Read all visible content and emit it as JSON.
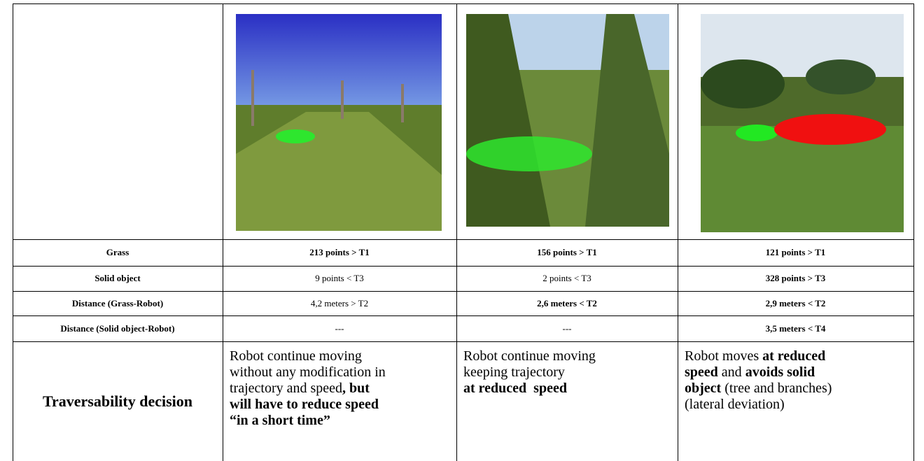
{
  "table": {
    "rows": [
      {
        "label": "Grass",
        "cells": [
          {
            "text": "213 points > T1",
            "bold": true
          },
          {
            "text": "156 points > T1",
            "bold": true
          },
          {
            "text": "121 points > T1",
            "bold": true
          }
        ]
      },
      {
        "label": "Solid object",
        "cells": [
          {
            "text": "9 points < T3",
            "bold": false
          },
          {
            "text": "2 points < T3",
            "bold": false
          },
          {
            "text": "328 points > T3",
            "bold": true
          }
        ]
      },
      {
        "label": "Distance (Grass-Robot)",
        "cells": [
          {
            "text": "4,2 meters > T2",
            "bold": false
          },
          {
            "text": "2,6 meters < T2",
            "bold": true
          },
          {
            "text": "2,9 meters < T2",
            "bold": true
          }
        ]
      },
      {
        "label": "Distance (Solid object-Robot)",
        "cells": [
          {
            "text": "---",
            "bold": false
          },
          {
            "text": "---",
            "bold": false
          },
          {
            "text": "3,5 meters <  T4",
            "bold": true
          }
        ]
      }
    ],
    "decision": {
      "label": "Traversability decision",
      "cells": [
        [
          [
            {
              "text": "Robot continue moving",
              "bold": false
            }
          ],
          [
            {
              "text": "without any modification in",
              "bold": false
            }
          ],
          [
            {
              "text": "trajectory and speed",
              "bold": false
            },
            {
              "text": ", but",
              "bold": true
            }
          ],
          [
            {
              "text": "will have to reduce speed",
              "bold": true
            }
          ],
          [
            {
              "text": "“in a short time”",
              "bold": true
            }
          ]
        ],
        [
          [
            {
              "text": "Robot continue moving",
              "bold": false
            }
          ],
          [
            {
              "text": "keeping trajectory",
              "bold": false
            }
          ],
          [
            {
              "text": "at reduced  speed",
              "bold": true
            }
          ]
        ],
        [
          [
            {
              "text": "Robot moves ",
              "bold": false
            },
            {
              "text": "at reduced",
              "bold": true
            }
          ],
          [
            {
              "text": "speed",
              "bold": true
            },
            {
              "text": " and ",
              "bold": false
            },
            {
              "text": "avoids solid",
              "bold": true
            }
          ],
          [
            {
              "text": "object",
              "bold": true
            },
            {
              "text": " (tree and branches)",
              "bold": false
            }
          ],
          [
            {
              "text": "(lateral deviation)",
              "bold": false
            }
          ]
        ]
      ]
    }
  }
}
